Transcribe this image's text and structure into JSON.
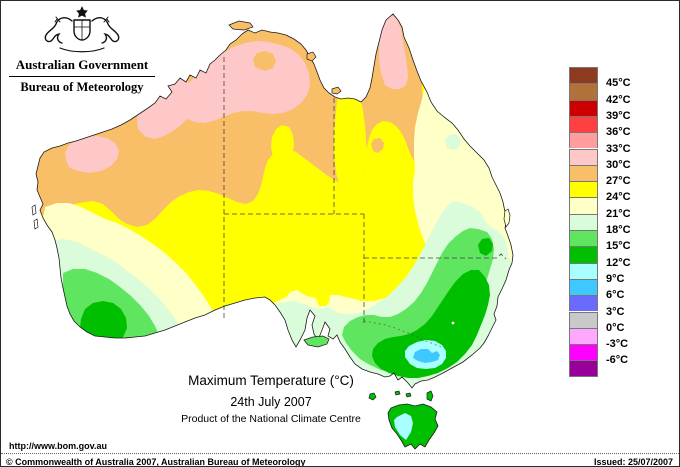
{
  "header": {
    "government": "Australian Government",
    "bureau": "Bureau of Meteorology"
  },
  "title_block": {
    "title": "Maximum Temperature (°C)",
    "date": "24th July 2007",
    "product": "Product of the National Climate Centre"
  },
  "footer": {
    "url": "http://www.bom.gov.au",
    "copyright": "© Commonwealth of Australia 2007, Australian Bureau of Meteorology",
    "issued": "Issued: 25/07/2007"
  },
  "palette": {
    "t45plus": "#8E3A1F",
    "t42_45": "#B0713A",
    "t39_42": "#CC0000",
    "t36_39": "#FF4040",
    "t33_36": "#FF9C9C",
    "t30_33": "#FFC8C8",
    "t27_30": "#F8BE68",
    "t24_27": "#FFFF00",
    "t21_24": "#FFFFC8",
    "t18_21": "#DAFCDA",
    "t15_18": "#5FE55F",
    "t12_15": "#00BE00",
    "t9_12": "#A8FFFF",
    "t6_9": "#3FC8FF",
    "t3_6": "#6A6AFF",
    "t0_3": "#C9C9C9",
    "tm3_0": "#FFA8FF",
    "tm6_m3": "#FF00FF",
    "tm6less": "#990099",
    "coastline": "#1a1a1a",
    "ocean": "#FFFFFF"
  },
  "legend": {
    "blocks": [
      {
        "color": "#8E3A1F",
        "label": "45°C"
      },
      {
        "color": "#B0713A",
        "label": "42°C"
      },
      {
        "color": "#CC0000",
        "label": "39°C"
      },
      {
        "color": "#FF4040",
        "label": "36°C"
      },
      {
        "color": "#FF9C9C",
        "label": "33°C"
      },
      {
        "color": "#FFC8C8",
        "label": "30°C"
      },
      {
        "color": "#F8BE68",
        "label": "27°C"
      },
      {
        "color": "#FFFF00",
        "label": "24°C"
      },
      {
        "color": "#FFFFC8",
        "label": "21°C"
      },
      {
        "color": "#DAFCDA",
        "label": "18°C"
      },
      {
        "color": "#5FE55F",
        "label": "15°C"
      },
      {
        "color": "#00BE00",
        "label": "12°C"
      },
      {
        "color": "#A8FFFF",
        "label": "9°C"
      },
      {
        "color": "#3FC8FF",
        "label": "6°C"
      },
      {
        "color": "#6A6AFF",
        "label": "3°C"
      },
      {
        "color": "#C9C9C9",
        "label": "0°C"
      },
      {
        "color": "#FFA8FF",
        "label": "-3°C"
      },
      {
        "color": "#FF00FF",
        "label": "-6°C"
      },
      {
        "color": "#990099",
        "label": ""
      }
    ]
  },
  "map": {
    "bands_shown": [
      {
        "name": "30-33C north (Top End, Kimberley, Pilbara, Cape York)",
        "palette_key": "t30_33"
      },
      {
        "name": "27-30C northern band and west coast",
        "palette_key": "t27_30"
      },
      {
        "name": "24-27C central interior",
        "palette_key": "t24_27"
      },
      {
        "name": "21-24C eastern Queensland coast, SA and western NSW",
        "palette_key": "t21_24"
      },
      {
        "name": "18-21C southern SA, central NSW, southwest WA band",
        "palette_key": "t18_21"
      },
      {
        "name": "15-18C ranges band, southwest WA, Kangaroo Island",
        "palette_key": "t15_18"
      },
      {
        "name": "12-15C Victoria, NSW tablelands, southwest corner, Tasmania",
        "palette_key": "t12_15"
      },
      {
        "name": "9-12C Alps ring, western Tasmania",
        "palette_key": "t9_12"
      },
      {
        "name": "6-9C Alps core",
        "palette_key": "t6_9"
      }
    ],
    "state_borders": "dashed"
  }
}
